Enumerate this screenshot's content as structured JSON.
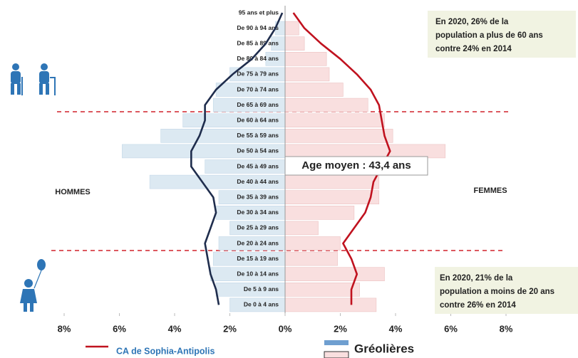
{
  "chart_data": {
    "type": "pyramid",
    "categories": [
      "95 ans et plus",
      "De 90 à 94 ans",
      "De 85 à 89 ans",
      "De 80 à 84 ans",
      "De 75 à 79 ans",
      "De 70 à 74 ans",
      "De 65 à 69 ans",
      "De 60 à 64 ans",
      "De 55 à 59 ans",
      "De 50 à 54 ans",
      "De 45 à 49 ans",
      "De 40 à 44 ans",
      "De 35 à 39 ans",
      "De 30 à 34 ans",
      "De 25 à 29 ans",
      "De 20 à 24 ans",
      "De 15 à 19 ans",
      "De 10 à 14 ans",
      "De 5 à 9 ans",
      "De 0 à 4 ans"
    ],
    "series": [
      {
        "name": "Gréolières",
        "type": "bar",
        "colors": [
          "#dce9f2",
          "#f9dfdf"
        ],
        "men": [
          0,
          0.35,
          0.5,
          0.7,
          2.0,
          2.5,
          2.6,
          3.7,
          4.5,
          5.9,
          2.9,
          4.9,
          2.4,
          2.5,
          2.0,
          2.4,
          2.6,
          2.7,
          2.5,
          2.0
        ],
        "women": [
          0,
          0.5,
          0.7,
          1.5,
          1.6,
          2.1,
          3.0,
          3.6,
          3.9,
          5.8,
          3.5,
          3.4,
          3.4,
          2.5,
          1.2,
          2.0,
          1.9,
          3.6,
          2.7,
          3.3
        ]
      },
      {
        "name": "CA de Sophia-Antipolis",
        "type": "line",
        "colors": [
          "#1f2d4d",
          "#c0121f"
        ],
        "men": [
          0.1,
          0.35,
          0.7,
          1.2,
          1.9,
          2.5,
          2.9,
          2.9,
          3.1,
          3.4,
          3.4,
          3.0,
          2.6,
          2.5,
          2.7,
          2.9,
          2.8,
          2.7,
          2.5,
          2.4
        ],
        "women": [
          0.3,
          0.7,
          1.3,
          2.0,
          2.6,
          3.1,
          3.4,
          3.5,
          3.6,
          3.8,
          3.5,
          3.2,
          3.1,
          2.9,
          2.5,
          2.1,
          2.4,
          2.6,
          2.4,
          2.4
        ]
      }
    ],
    "xlim": [
      -8,
      8
    ],
    "xticks": [
      {
        "value": -8,
        "label": "8%"
      },
      {
        "value": -6,
        "label": "6%"
      },
      {
        "value": -4,
        "label": "4%"
      },
      {
        "value": -2,
        "label": "2%"
      },
      {
        "value": 0,
        "label": "0%"
      },
      {
        "value": 2,
        "label": "2%"
      },
      {
        "value": 4,
        "label": "4%"
      },
      {
        "value": 6,
        "label": "6%"
      },
      {
        "value": 8,
        "label": "8%"
      }
    ],
    "men_label": "HOMMES",
    "women_label": "FEMMES",
    "average_age": "Age moyen : 43,4 ans",
    "note_top": [
      "En 2020,  26% de la",
      "population a plus de 60 ans",
      "contre 24% en 2014"
    ],
    "note_bottom": [
      "En 2020, 21% de la",
      "population a moins de 20 ans",
      "contre 26% en 2014"
    ]
  }
}
